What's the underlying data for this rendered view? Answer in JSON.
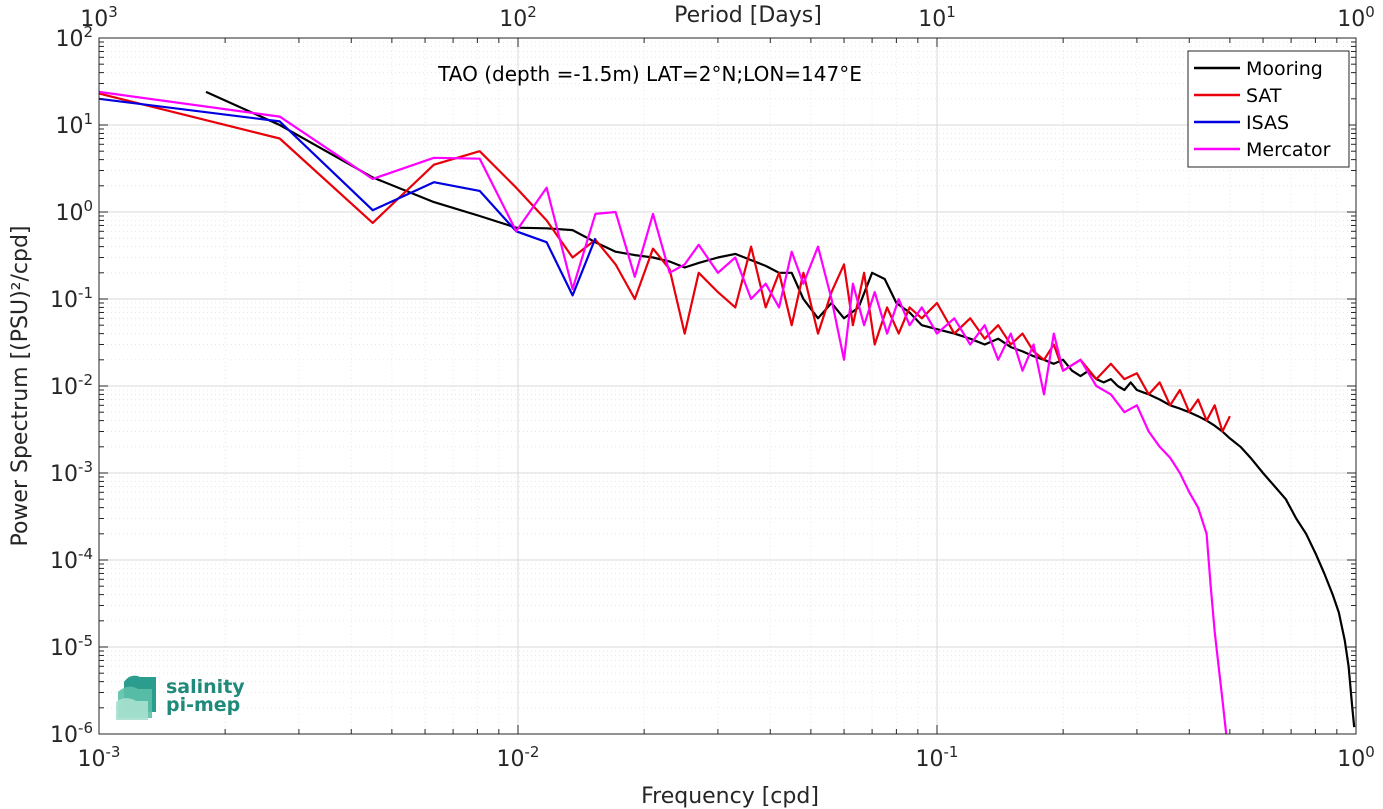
{
  "chart_data": {
    "type": "line",
    "xlabel": "Frequency [cpd]",
    "ylabel": "Power Spectrum [(PSU)²/cpd]",
    "top_xlabel": "Period [Days]",
    "annotation": "TAO (depth =-1.5m) LAT=2°N;LON=147°E",
    "x_scale": "log",
    "y_scale": "log",
    "xlim": [
      0.001,
      1
    ],
    "ylim": [
      1e-06,
      100
    ],
    "x_ticks": [
      {
        "value": 0.001,
        "base": "10",
        "exp": "-3"
      },
      {
        "value": 0.01,
        "base": "10",
        "exp": "-2"
      },
      {
        "value": 0.1,
        "base": "10",
        "exp": "-1"
      },
      {
        "value": 1,
        "base": "10",
        "exp": "0"
      }
    ],
    "top_ticks": [
      {
        "value": 0.001,
        "base": "10",
        "exp": "3"
      },
      {
        "value": 0.01,
        "base": "10",
        "exp": "2"
      },
      {
        "value": 0.1,
        "base": "10",
        "exp": "1"
      },
      {
        "value": 1,
        "base": "10",
        "exp": "0"
      }
    ],
    "y_ticks": [
      {
        "value": 100,
        "base": "10",
        "exp": "2"
      },
      {
        "value": 10,
        "base": "10",
        "exp": "1"
      },
      {
        "value": 1,
        "base": "10",
        "exp": "0"
      },
      {
        "value": 0.1,
        "base": "10",
        "exp": "-1"
      },
      {
        "value": 0.01,
        "base": "10",
        "exp": "-2"
      },
      {
        "value": 0.001,
        "base": "10",
        "exp": "-3"
      },
      {
        "value": 0.0001,
        "base": "10",
        "exp": "-4"
      },
      {
        "value": 1e-05,
        "base": "10",
        "exp": "-5"
      },
      {
        "value": 1e-06,
        "base": "10",
        "exp": "-6"
      }
    ],
    "grid": true,
    "minor_grid": true,
    "legend_position": "top-right",
    "series": [
      {
        "name": "Mooring",
        "color": "#000000",
        "points": [
          [
            0.0018,
            24
          ],
          [
            0.0027,
            10
          ],
          [
            0.0045,
            2.5
          ],
          [
            0.0063,
            1.3
          ],
          [
            0.0081,
            0.9
          ],
          [
            0.0099,
            0.66
          ],
          [
            0.0117,
            0.65
          ],
          [
            0.0135,
            0.62
          ],
          [
            0.0153,
            0.45
          ],
          [
            0.0171,
            0.35
          ],
          [
            0.019,
            0.32
          ],
          [
            0.021,
            0.3
          ],
          [
            0.023,
            0.27
          ],
          [
            0.025,
            0.23
          ],
          [
            0.027,
            0.26
          ],
          [
            0.03,
            0.3
          ],
          [
            0.033,
            0.33
          ],
          [
            0.036,
            0.28
          ],
          [
            0.039,
            0.24
          ],
          [
            0.042,
            0.2
          ],
          [
            0.045,
            0.2
          ],
          [
            0.048,
            0.1
          ],
          [
            0.052,
            0.06
          ],
          [
            0.056,
            0.09
          ],
          [
            0.06,
            0.06
          ],
          [
            0.065,
            0.08
          ],
          [
            0.07,
            0.2
          ],
          [
            0.075,
            0.17
          ],
          [
            0.08,
            0.09
          ],
          [
            0.086,
            0.07
          ],
          [
            0.092,
            0.05
          ],
          [
            0.1,
            0.045
          ],
          [
            0.11,
            0.04
          ],
          [
            0.12,
            0.035
          ],
          [
            0.13,
            0.03
          ],
          [
            0.14,
            0.035
          ],
          [
            0.15,
            0.028
          ],
          [
            0.16,
            0.025
          ],
          [
            0.17,
            0.022
          ],
          [
            0.18,
            0.02
          ],
          [
            0.19,
            0.018
          ],
          [
            0.2,
            0.02
          ],
          [
            0.21,
            0.015
          ],
          [
            0.22,
            0.013
          ],
          [
            0.23,
            0.015
          ],
          [
            0.24,
            0.012
          ],
          [
            0.25,
            0.011
          ],
          [
            0.26,
            0.012
          ],
          [
            0.27,
            0.01
          ],
          [
            0.28,
            0.009
          ],
          [
            0.29,
            0.011
          ],
          [
            0.3,
            0.009
          ],
          [
            0.32,
            0.008
          ],
          [
            0.34,
            0.007
          ],
          [
            0.36,
            0.006
          ],
          [
            0.38,
            0.0055
          ],
          [
            0.4,
            0.005
          ],
          [
            0.42,
            0.0045
          ],
          [
            0.44,
            0.004
          ],
          [
            0.46,
            0.0035
          ],
          [
            0.48,
            0.003
          ],
          [
            0.5,
            0.0025
          ],
          [
            0.53,
            0.002
          ],
          [
            0.56,
            0.0015
          ],
          [
            0.6,
            0.001
          ],
          [
            0.64,
            0.0007
          ],
          [
            0.68,
            0.0005
          ],
          [
            0.72,
            0.0003
          ],
          [
            0.76,
            0.0002
          ],
          [
            0.8,
            0.00012
          ],
          [
            0.84,
            7e-05
          ],
          [
            0.88,
            4e-05
          ],
          [
            0.91,
            2.5e-05
          ],
          [
            0.94,
            1.2e-05
          ],
          [
            0.96,
            6e-06
          ],
          [
            0.98,
            2e-06
          ],
          [
            0.99,
            1.2e-06
          ]
        ]
      },
      {
        "name": "SAT",
        "color": "#e8000b",
        "points": [
          [
            0.001,
            23
          ],
          [
            0.0027,
            7
          ],
          [
            0.0045,
            0.75
          ],
          [
            0.0063,
            3.5
          ],
          [
            0.0081,
            5
          ],
          [
            0.0099,
            1.9
          ],
          [
            0.0117,
            0.8
          ],
          [
            0.0135,
            0.3
          ],
          [
            0.0153,
            0.48
          ],
          [
            0.0171,
            0.25
          ],
          [
            0.019,
            0.1
          ],
          [
            0.021,
            0.38
          ],
          [
            0.023,
            0.22
          ],
          [
            0.025,
            0.04
          ],
          [
            0.027,
            0.2
          ],
          [
            0.03,
            0.12
          ],
          [
            0.033,
            0.08
          ],
          [
            0.036,
            0.4
          ],
          [
            0.039,
            0.08
          ],
          [
            0.042,
            0.2
          ],
          [
            0.045,
            0.05
          ],
          [
            0.048,
            0.2
          ],
          [
            0.052,
            0.04
          ],
          [
            0.056,
            0.12
          ],
          [
            0.06,
            0.25
          ],
          [
            0.063,
            0.05
          ],
          [
            0.067,
            0.2
          ],
          [
            0.071,
            0.03
          ],
          [
            0.076,
            0.08
          ],
          [
            0.081,
            0.04
          ],
          [
            0.086,
            0.08
          ],
          [
            0.092,
            0.06
          ],
          [
            0.1,
            0.09
          ],
          [
            0.11,
            0.04
          ],
          [
            0.12,
            0.06
          ],
          [
            0.13,
            0.035
          ],
          [
            0.14,
            0.05
          ],
          [
            0.15,
            0.03
          ],
          [
            0.16,
            0.04
          ],
          [
            0.17,
            0.025
          ],
          [
            0.18,
            0.02
          ],
          [
            0.19,
            0.03
          ],
          [
            0.2,
            0.015
          ],
          [
            0.22,
            0.02
          ],
          [
            0.24,
            0.012
          ],
          [
            0.26,
            0.018
          ],
          [
            0.28,
            0.012
          ],
          [
            0.3,
            0.014
          ],
          [
            0.32,
            0.008
          ],
          [
            0.34,
            0.011
          ],
          [
            0.36,
            0.006
          ],
          [
            0.38,
            0.009
          ],
          [
            0.4,
            0.005
          ],
          [
            0.42,
            0.007
          ],
          [
            0.44,
            0.004
          ],
          [
            0.46,
            0.006
          ],
          [
            0.48,
            0.003
          ],
          [
            0.5,
            0.0045
          ]
        ]
      },
      {
        "name": "ISAS",
        "color": "#0000e0",
        "points": [
          [
            0.001,
            20
          ],
          [
            0.0027,
            11
          ],
          [
            0.0045,
            1.05
          ],
          [
            0.0063,
            2.2
          ],
          [
            0.0081,
            1.75
          ],
          [
            0.0099,
            0.6
          ],
          [
            0.0117,
            0.45
          ],
          [
            0.0135,
            0.11
          ],
          [
            0.0153,
            0.5
          ]
        ]
      },
      {
        "name": "Mercator",
        "color": "#ff00ff",
        "points": [
          [
            0.001,
            24
          ],
          [
            0.0027,
            12.5
          ],
          [
            0.0045,
            2.4
          ],
          [
            0.0063,
            4.2
          ],
          [
            0.0081,
            4.1
          ],
          [
            0.0099,
            0.6
          ],
          [
            0.0117,
            1.9
          ],
          [
            0.0135,
            0.13
          ],
          [
            0.0153,
            0.95
          ],
          [
            0.0171,
            1.0
          ],
          [
            0.019,
            0.18
          ],
          [
            0.021,
            0.95
          ],
          [
            0.023,
            0.2
          ],
          [
            0.025,
            0.25
          ],
          [
            0.027,
            0.42
          ],
          [
            0.03,
            0.2
          ],
          [
            0.033,
            0.3
          ],
          [
            0.036,
            0.1
          ],
          [
            0.039,
            0.15
          ],
          [
            0.042,
            0.08
          ],
          [
            0.045,
            0.35
          ],
          [
            0.048,
            0.15
          ],
          [
            0.052,
            0.4
          ],
          [
            0.056,
            0.1
          ],
          [
            0.06,
            0.02
          ],
          [
            0.063,
            0.15
          ],
          [
            0.067,
            0.05
          ],
          [
            0.071,
            0.12
          ],
          [
            0.076,
            0.04
          ],
          [
            0.081,
            0.1
          ],
          [
            0.086,
            0.05
          ],
          [
            0.092,
            0.08
          ],
          [
            0.1,
            0.04
          ],
          [
            0.11,
            0.06
          ],
          [
            0.12,
            0.03
          ],
          [
            0.13,
            0.05
          ],
          [
            0.14,
            0.02
          ],
          [
            0.15,
            0.04
          ],
          [
            0.16,
            0.015
          ],
          [
            0.17,
            0.03
          ],
          [
            0.18,
            0.008
          ],
          [
            0.19,
            0.04
          ],
          [
            0.2,
            0.015
          ],
          [
            0.22,
            0.02
          ],
          [
            0.24,
            0.01
          ],
          [
            0.26,
            0.008
          ],
          [
            0.28,
            0.005
          ],
          [
            0.3,
            0.006
          ],
          [
            0.32,
            0.003
          ],
          [
            0.34,
            0.002
          ],
          [
            0.36,
            0.0015
          ],
          [
            0.38,
            0.001
          ],
          [
            0.4,
            0.0006
          ],
          [
            0.42,
            0.0004
          ],
          [
            0.44,
            0.0002
          ],
          [
            0.45,
            5e-05
          ],
          [
            0.46,
            1.5e-05
          ],
          [
            0.47,
            6e-06
          ],
          [
            0.48,
            2.5e-06
          ],
          [
            0.49,
            1e-06
          ]
        ]
      }
    ]
  },
  "logo": {
    "line1": "salinity",
    "line2": "pi-mep"
  }
}
